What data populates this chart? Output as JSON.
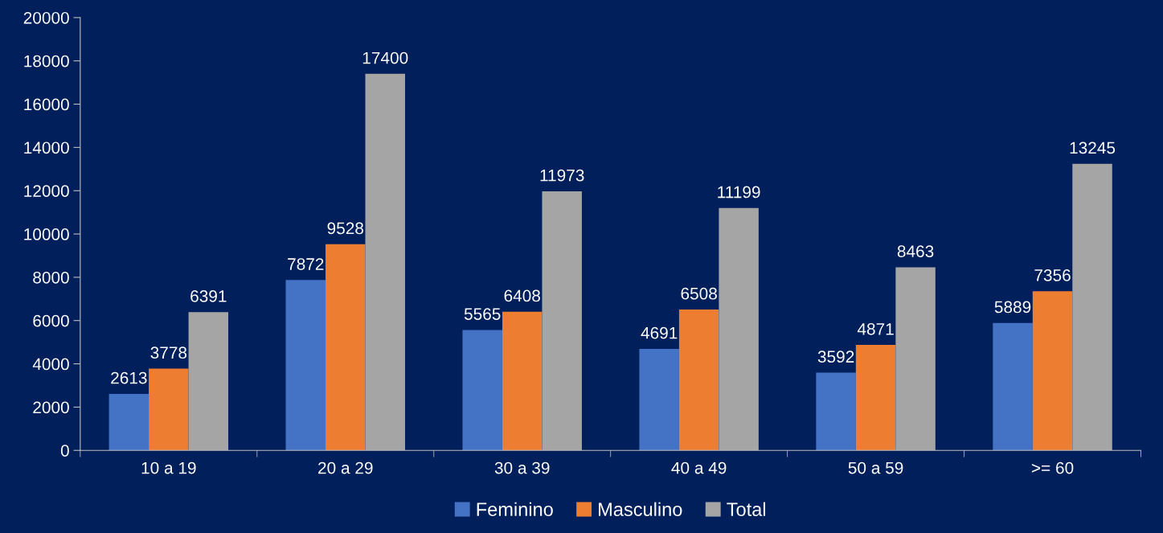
{
  "chart_data": {
    "type": "bar",
    "categories": [
      "10 a 19",
      "20 a 29",
      "30 a 39",
      "40 a 49",
      "50 a 59",
      ">= 60"
    ],
    "series": [
      {
        "name": "Feminino",
        "color": "#4472c4",
        "values": [
          2613,
          7872,
          5565,
          4691,
          3592,
          5889
        ]
      },
      {
        "name": "Masculino",
        "color": "#ed7d31",
        "values": [
          3778,
          9528,
          6408,
          6508,
          4871,
          7356
        ]
      },
      {
        "name": "Total",
        "color": "#a5a5a5",
        "values": [
          6391,
          17400,
          11973,
          11199,
          8463,
          13245
        ]
      }
    ],
    "ylim": [
      0,
      20000
    ],
    "yticks": [
      0,
      2000,
      4000,
      6000,
      8000,
      10000,
      12000,
      14000,
      16000,
      18000,
      20000
    ],
    "data_labels": true,
    "legend": "bottom",
    "grid": false
  }
}
